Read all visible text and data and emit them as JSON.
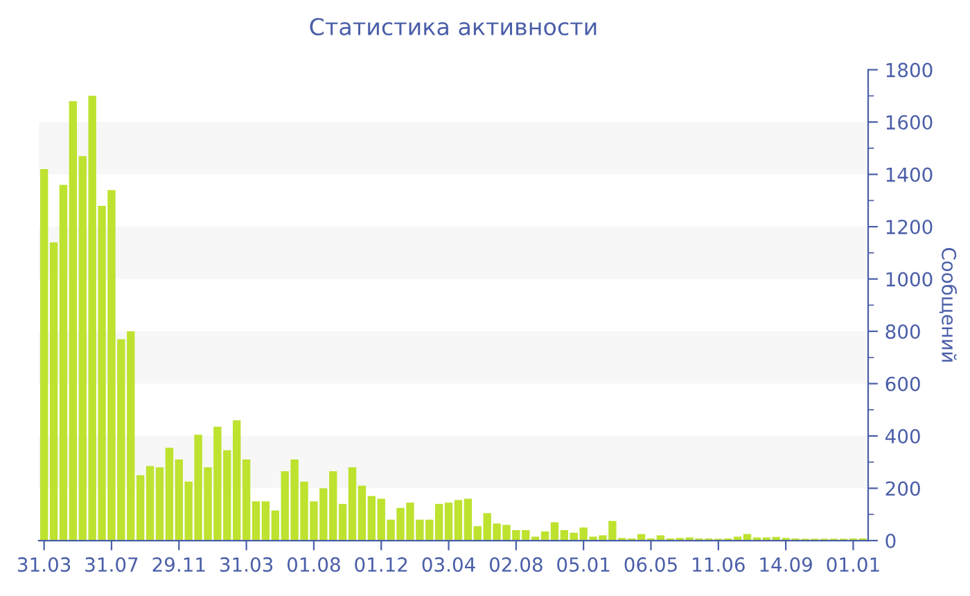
{
  "chart_data": {
    "type": "bar",
    "title": "Статистика активности",
    "ylabel": "Сообщений",
    "categories": [
      "31.03",
      null,
      null,
      null,
      null,
      null,
      null,
      "31.07",
      null,
      null,
      null,
      null,
      null,
      null,
      "29.11",
      null,
      null,
      null,
      null,
      null,
      null,
      "31.03",
      null,
      null,
      null,
      null,
      null,
      null,
      "01.08",
      null,
      null,
      null,
      null,
      null,
      null,
      "01.12",
      null,
      null,
      null,
      null,
      null,
      null,
      "03.04",
      null,
      null,
      null,
      null,
      null,
      null,
      "02.08",
      null,
      null,
      null,
      null,
      null,
      null,
      "05.01",
      null,
      null,
      null,
      null,
      null,
      null,
      "06.05",
      null,
      null,
      null,
      null,
      null,
      null,
      "11.06",
      null,
      null,
      null,
      null,
      null,
      null,
      "14.09",
      null,
      null,
      null,
      null,
      null,
      null,
      "01.01",
      null
    ],
    "values": [
      1420,
      1140,
      1360,
      1680,
      1470,
      1700,
      1280,
      1340,
      770,
      800,
      250,
      285,
      280,
      355,
      310,
      225,
      405,
      280,
      435,
      345,
      460,
      310,
      150,
      150,
      115,
      265,
      310,
      225,
      150,
      200,
      265,
      140,
      280,
      210,
      170,
      160,
      80,
      125,
      145,
      80,
      80,
      140,
      145,
      155,
      160,
      55,
      105,
      65,
      60,
      40,
      40,
      15,
      35,
      70,
      40,
      30,
      50,
      15,
      20,
      75,
      10,
      8,
      25,
      8,
      20,
      8,
      10,
      12,
      8,
      8,
      7,
      8,
      15,
      25,
      12,
      12,
      14,
      10,
      8,
      7,
      7,
      7,
      7,
      7,
      8,
      8
    ],
    "color": "#bde22f",
    "ylim": [
      0,
      1800
    ],
    "yticks": [
      0,
      200,
      400,
      600,
      800,
      1000,
      1200,
      1400,
      1600,
      1800
    ],
    "bands": [
      {
        "axis": "y",
        "from": 200,
        "to": 400,
        "color": "#f7f7f7"
      },
      {
        "axis": "y",
        "from": 600,
        "to": 800,
        "color": "#f7f7f7"
      },
      {
        "axis": "y",
        "from": 1000,
        "to": 1200,
        "color": "#f7f7f7"
      },
      {
        "axis": "y",
        "from": 1400,
        "to": 1600,
        "color": "#f7f7f7"
      }
    ]
  }
}
